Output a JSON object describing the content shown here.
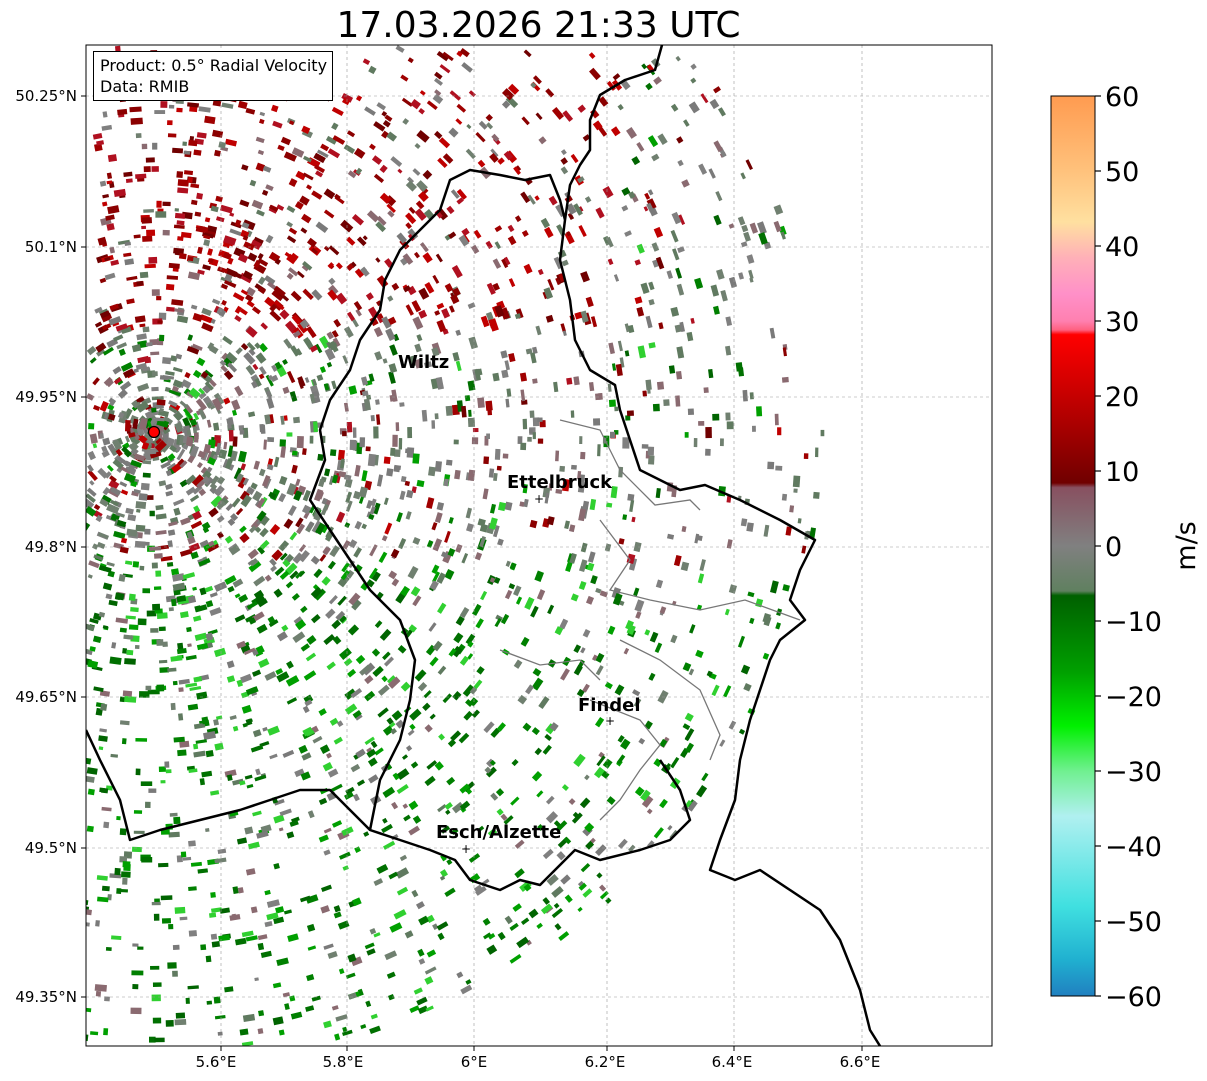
{
  "title": "17.03.2026 21:33 UTC",
  "info": {
    "product": "Product: 0.5° Radial Velocity",
    "source": "Data: RMIB"
  },
  "axes": {
    "lat_ticks": [
      "50.25°N",
      "50.1°N",
      "49.95°N",
      "49.8°N",
      "49.65°N",
      "49.5°N",
      "49.35°N"
    ],
    "lon_ticks": [
      "5.6°E",
      "5.8°E",
      "6°E",
      "6.2°E",
      "6.4°E",
      "6.6°E"
    ]
  },
  "cities": [
    {
      "name": "Wiltz"
    },
    {
      "name": "Ettelbruck"
    },
    {
      "name": "Findel"
    },
    {
      "name": "Esch/Alzette"
    }
  ],
  "colorbar": {
    "label": "m/s",
    "ticks": [
      "60",
      "50",
      "40",
      "30",
      "20",
      "10",
      "0",
      "−10",
      "−20",
      "−30",
      "−40",
      "−50",
      "−60"
    ],
    "range": [
      -60,
      60
    ]
  },
  "colors": {
    "approaching": "#00a000",
    "receding": "#8b0000",
    "near_zero": "#808080",
    "radar_site": "#ff0000"
  }
}
